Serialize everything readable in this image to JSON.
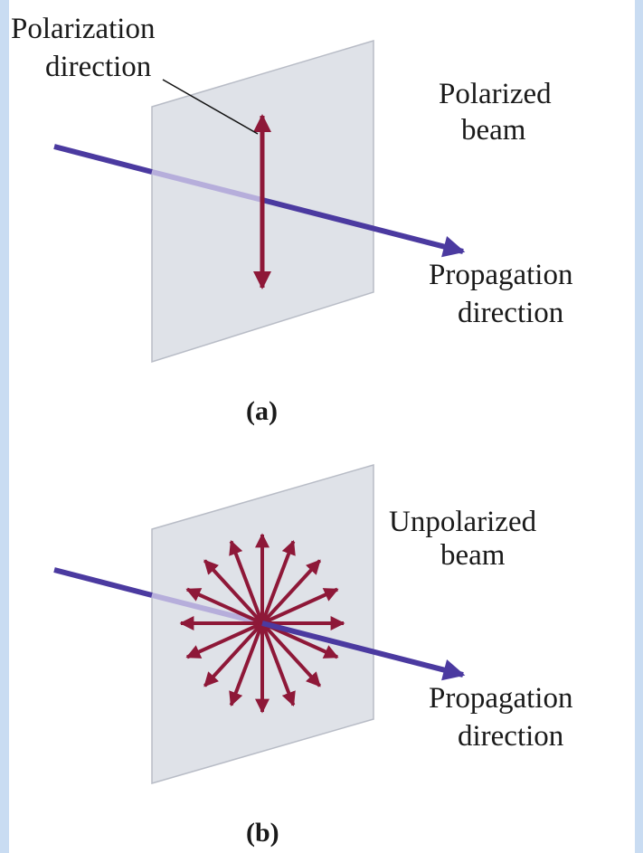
{
  "panels": [
    {
      "polarization_label": [
        "Polarization",
        "direction"
      ],
      "beam_label": [
        "Polarized",
        "beam"
      ],
      "propagation_label": [
        "Propagation",
        "direction"
      ],
      "caption": "(a)"
    },
    {
      "beam_label": [
        "Unpolarized",
        "beam"
      ],
      "propagation_label": [
        "Propagation",
        "direction"
      ],
      "caption": "(b)"
    }
  ]
}
